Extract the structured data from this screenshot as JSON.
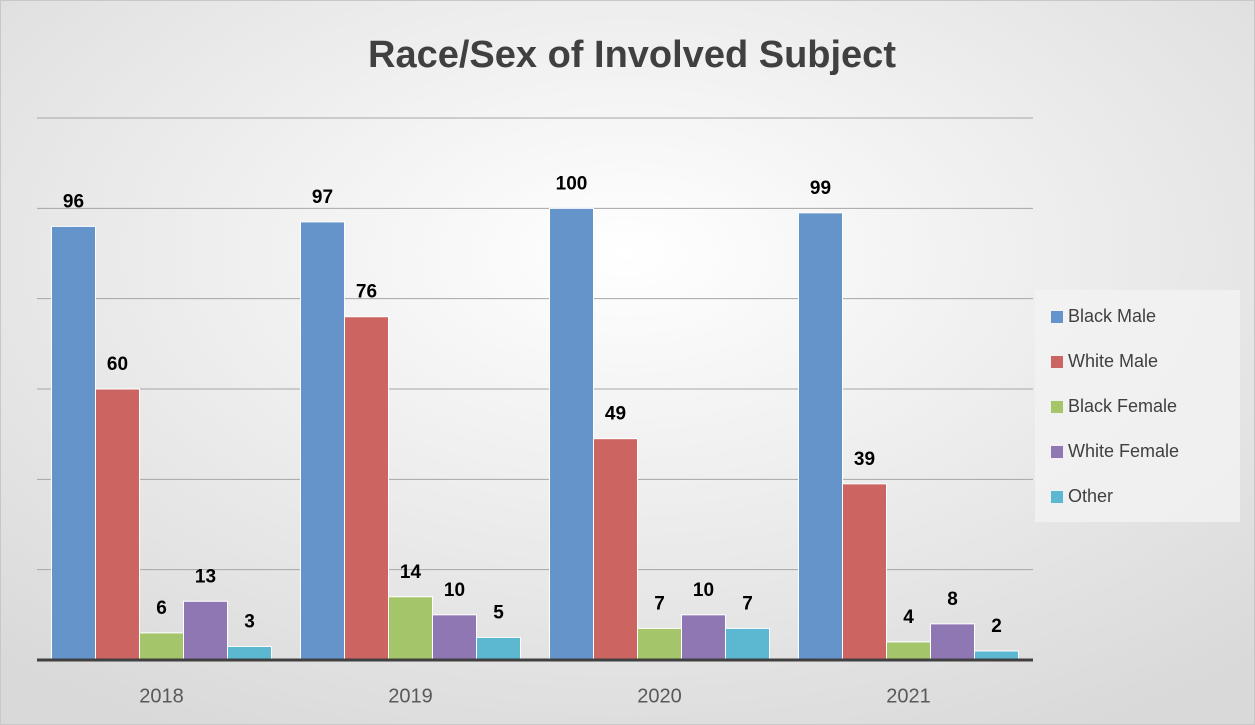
{
  "chart_data": {
    "type": "bar",
    "title": "Race/Sex of Involved Subject",
    "categories": [
      "2018",
      "2019",
      "2020",
      "2021"
    ],
    "series": [
      {
        "name": "Black Male",
        "color": "#6594cb",
        "values": [
          96,
          97,
          100,
          99
        ]
      },
      {
        "name": "White Male",
        "color": "#cc6562",
        "values": [
          60,
          76,
          49,
          39
        ]
      },
      {
        "name": "Black Female",
        "color": "#a5c56b",
        "values": [
          6,
          14,
          7,
          4
        ]
      },
      {
        "name": "White Female",
        "color": "#8f77b4",
        "values": [
          13,
          10,
          10,
          8
        ]
      },
      {
        "name": "Other",
        "color": "#5cb8d0",
        "values": [
          3,
          5,
          7,
          2
        ]
      }
    ],
    "ylim": [
      0,
      120
    ],
    "yticks": [
      0,
      20,
      40,
      60,
      80,
      100,
      120
    ],
    "grid": true,
    "legend": "right"
  }
}
